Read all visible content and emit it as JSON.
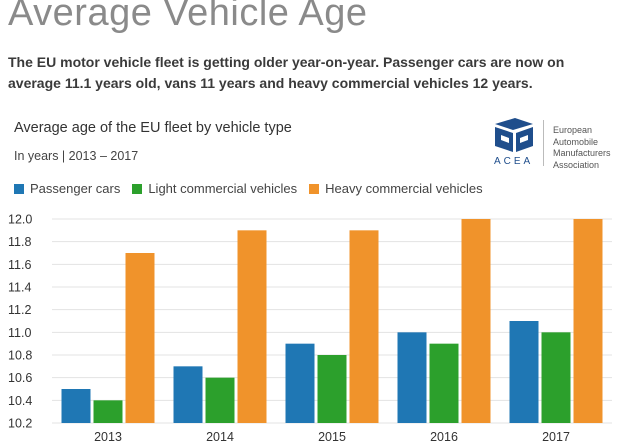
{
  "page": {
    "title": "Average Vehicle Age",
    "intro": "The EU motor vehicle fleet is getting older year-on-year. Passenger cars are now on average 11.1 years old, vans 11 years and heavy commercial vehicles 12 years."
  },
  "logo": {
    "acronym": "ACEA",
    "lines": [
      "European",
      "Automobile",
      "Manufacturers",
      "Association"
    ],
    "icon": "acea-logo-icon"
  },
  "chart_data": {
    "type": "bar",
    "title": "Average age of the EU fleet by vehicle type",
    "subtitle": "In years | 2013 – 2017",
    "xlabel": "",
    "ylabel": "",
    "categories": [
      "2013",
      "2014",
      "2015",
      "2016",
      "2017"
    ],
    "series": [
      {
        "name": "Passenger cars",
        "color": "#1f77b4",
        "values": [
          10.5,
          10.7,
          10.9,
          11.0,
          11.1
        ]
      },
      {
        "name": "Light commercial vehicles",
        "color": "#2ca02c",
        "values": [
          10.4,
          10.6,
          10.8,
          10.9,
          11.0
        ]
      },
      {
        "name": "Heavy commercial vehicles",
        "color": "#f0932b",
        "values": [
          11.7,
          11.9,
          11.9,
          12.0,
          12.0
        ]
      }
    ],
    "ylim": [
      10.2,
      12.0
    ],
    "yticks": [
      "12.0",
      "11.8",
      "11.6",
      "11.4",
      "11.2",
      "11.0",
      "10.8",
      "10.6",
      "10.4",
      "10.2"
    ],
    "grid": true,
    "legend_position": "top-left"
  }
}
